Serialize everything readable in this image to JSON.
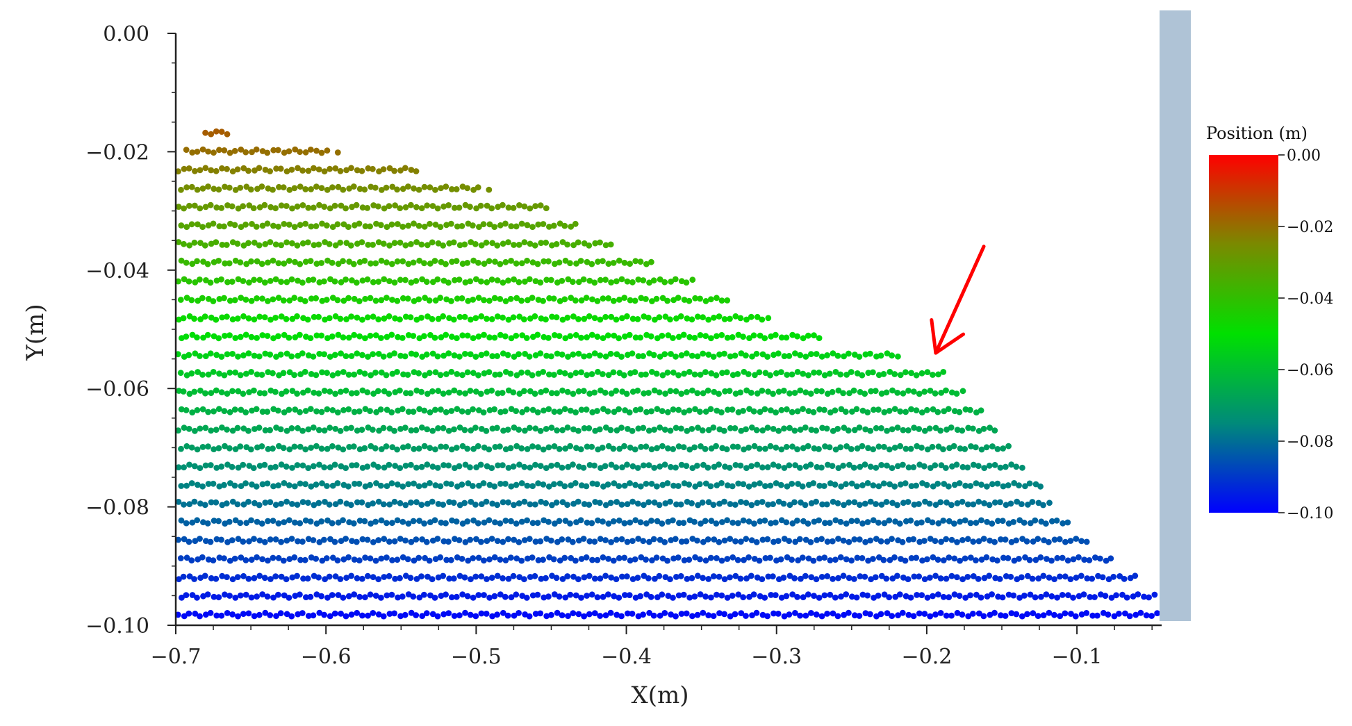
{
  "chart_data": {
    "type": "scatter",
    "title": "",
    "xlabel": "X(m)",
    "ylabel": "Y(m)",
    "xlim": [
      -0.7,
      -0.045
    ],
    "ylim": [
      -0.1,
      0.0
    ],
    "x_ticks": [
      -0.7,
      -0.6,
      -0.5,
      -0.4,
      -0.3,
      -0.2,
      -0.1
    ],
    "x_tick_labels": [
      "−0.7",
      "−0.6",
      "−0.5",
      "−0.4",
      "−0.3",
      "−0.2",
      "−0.1"
    ],
    "y_ticks": [
      0.0,
      -0.02,
      -0.04,
      -0.06,
      -0.08,
      -0.1
    ],
    "y_tick_labels": [
      "0.00",
      "−0.02",
      "−0.04",
      "−0.06",
      "−0.08",
      "−0.10"
    ],
    "grid": false,
    "particle_diameter": 0.0036,
    "color_variable": "y",
    "free_surface_profile": [
      {
        "x": -0.7,
        "y": -0.021
      },
      {
        "x": -0.68,
        "y": -0.015
      },
      {
        "x": -0.64,
        "y": -0.018
      },
      {
        "x": -0.6,
        "y": -0.019
      },
      {
        "x": -0.56,
        "y": -0.021
      },
      {
        "x": -0.52,
        "y": -0.024
      },
      {
        "x": -0.46,
        "y": -0.027
      },
      {
        "x": -0.43,
        "y": -0.032
      },
      {
        "x": -0.38,
        "y": -0.038
      },
      {
        "x": -0.33,
        "y": -0.044
      },
      {
        "x": -0.28,
        "y": -0.05
      },
      {
        "x": -0.23,
        "y": -0.053
      },
      {
        "x": -0.19,
        "y": -0.056
      },
      {
        "x": -0.16,
        "y": -0.063
      },
      {
        "x": -0.13,
        "y": -0.074
      },
      {
        "x": -0.1,
        "y": -0.083
      },
      {
        "x": -0.06,
        "y": -0.091
      },
      {
        "x": -0.045,
        "y": -0.093
      }
    ],
    "wall": {
      "x_min": -0.045,
      "x_max": -0.04,
      "color": "#afc3d6"
    },
    "colorbar": {
      "title": "Position (m)",
      "range": [
        -0.1,
        0.0
      ],
      "ticks": [
        0.0,
        -0.02,
        -0.04,
        -0.06,
        -0.08,
        -0.1
      ],
      "tick_labels": [
        "0.00",
        "−0.02",
        "−0.04",
        "−0.06",
        "−0.08",
        "−0.10"
      ],
      "stops": [
        {
          "value": 0.0,
          "color": "#ff0000"
        },
        {
          "value": -0.025,
          "color": "#7a8a00"
        },
        {
          "value": -0.05,
          "color": "#00e000"
        },
        {
          "value": -0.075,
          "color": "#008a7a"
        },
        {
          "value": -0.1,
          "color": "#0000ff"
        }
      ]
    },
    "annotation": {
      "type": "arrow",
      "color": "#ff0000",
      "from": {
        "x": -0.162,
        "y": -0.036
      },
      "to": {
        "x": -0.194,
        "y": -0.054
      }
    }
  }
}
